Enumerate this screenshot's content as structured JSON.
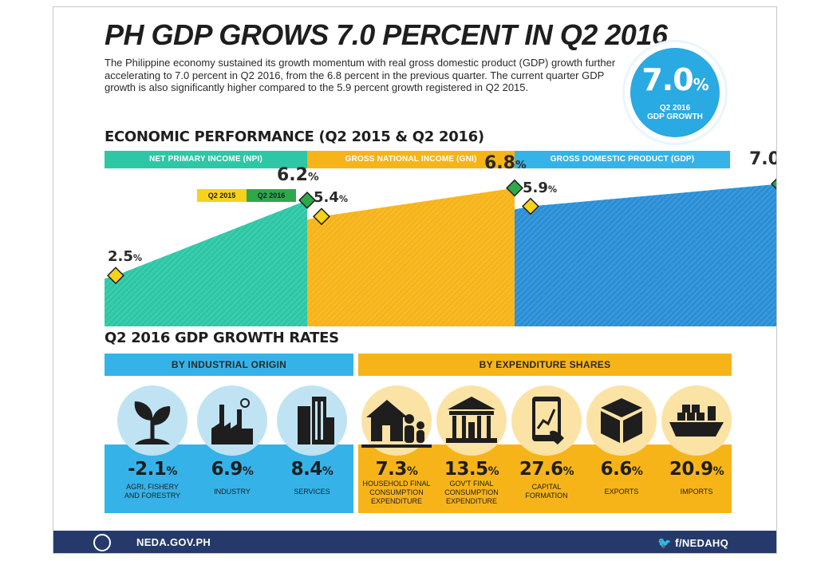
{
  "title": "PH GDP GROWS 7.0 PERCENT IN Q2 2016",
  "intro": "The Philippine economy sustained its growth momentum with real gross domestic product (GDP) growth further accelerating to 7.0 percent in Q2 2016, from the 6.8 percent in the previous quarter. The current quarter GDP growth is also significantly higher compared to the 5.9 percent growth registered in Q2 2015.",
  "badge": {
    "value": "7.0",
    "unit": "%",
    "caption_line1": "Q2 2016",
    "caption_line2": "GDP GROWTH"
  },
  "economic_performance": {
    "title": "ECONOMIC PERFORMANCE (Q2 2015 & Q2 2016)",
    "legend": {
      "q2_2015": "Q2 2015",
      "q2_2016": "Q2 2016"
    },
    "colors": {
      "npi": "#2dc7a6",
      "gni": "#f7b419",
      "gdp": "#2a8fd6",
      "q2_2015_marker": "#f7d21a",
      "q2_2016_marker": "#2ea84b"
    },
    "panels": [
      {
        "label": "NET PRIMARY INCOME (NPI)",
        "q2_2015": 2.5,
        "q2_2016": 6.2,
        "q2_2015_text": "2.5",
        "q2_2016_text": "6.2"
      },
      {
        "label": "GROSS NATIONAL INCOME (GNI)",
        "q2_2015": 5.4,
        "q2_2016": 6.8,
        "q2_2015_text": "5.4",
        "q2_2016_text": "6.8"
      },
      {
        "label": "GROSS DOMESTIC PRODUCT (GDP)",
        "q2_2015": 5.9,
        "q2_2016": 7.0,
        "q2_2015_text": "5.9",
        "q2_2016_text": "7.0"
      }
    ],
    "unit": "%"
  },
  "growth_rates": {
    "title": "Q2 2016 GDP GROWTH RATES",
    "by_industrial_origin": {
      "header": "BY INDUSTRIAL ORIGIN",
      "items": [
        {
          "value": "-2.1",
          "label_line1": "AGRI, FISHERY",
          "label_line2": "AND FORESTRY",
          "icon": "plant-icon"
        },
        {
          "value": "6.9",
          "label_line1": "INDUSTRY",
          "label_line2": "",
          "icon": "factory-icon"
        },
        {
          "value": "8.4",
          "label_line1": "SERVICES",
          "label_line2": "",
          "icon": "buildings-icon"
        }
      ]
    },
    "by_expenditure_shares": {
      "header": "BY EXPENDITURE SHARES",
      "items": [
        {
          "value": "7.3",
          "label_line1": "HOUSEHOLD FINAL",
          "label_line2": "CONSUMPTION",
          "label_line3": "EXPENDITURE",
          "icon": "family-house-icon"
        },
        {
          "value": "13.5",
          "label_line1": "GOV'T FINAL",
          "label_line2": "CONSUMPTION",
          "label_line3": "EXPENDITURE",
          "icon": "government-building-icon"
        },
        {
          "value": "27.6",
          "label_line1": "CAPITAL",
          "label_line2": "FORMATION",
          "label_line3": "",
          "icon": "tablet-chart-icon"
        },
        {
          "value": "6.6",
          "label_line1": "EXPORTS",
          "label_line2": "",
          "label_line3": "",
          "icon": "box-icon"
        },
        {
          "value": "20.9",
          "label_line1": "IMPORTS",
          "label_line2": "",
          "label_line3": "",
          "icon": "cargo-ship-icon"
        }
      ]
    },
    "unit": "%"
  },
  "footer": {
    "site": "NEDA.GOV.PH",
    "social": "/NEDAHQ"
  }
}
